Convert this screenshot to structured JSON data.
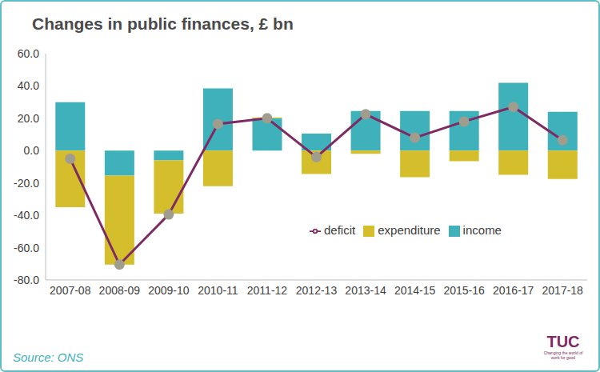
{
  "chart_data": {
    "type": "bar",
    "title": "Changes in public finances, £ bn",
    "categories": [
      "2007-08",
      "2008-09",
      "2009-10",
      "2010-11",
      "2011-12",
      "2012-13",
      "2013-14",
      "2014-15",
      "2015-16",
      "2016-17",
      "2017-18"
    ],
    "series": [
      {
        "name": "income",
        "type": "bar",
        "color": "#3fb1bb",
        "values": [
          30,
          -15.5,
          -6,
          38.5,
          20,
          10.5,
          24.5,
          24.5,
          24.5,
          42,
          24
        ]
      },
      {
        "name": "expenditure",
        "type": "bar",
        "color": "#d4be2c",
        "values": [
          -35,
          -55,
          -33,
          -22,
          0.5,
          -14.5,
          -2,
          -16.5,
          -6.5,
          -15,
          -17.5
        ]
      },
      {
        "name": "deficit",
        "type": "line",
        "color": "#7e2b63",
        "marker": "circle",
        "values": [
          -5,
          -70.5,
          -39.5,
          16.5,
          20,
          -4,
          22.5,
          8,
          18,
          27,
          6.5
        ]
      }
    ],
    "stacked": true,
    "ylim": [
      -80,
      60
    ],
    "yticks": [
      {
        "value": -80,
        "label": "-80.0"
      },
      {
        "value": -60,
        "label": "-60.0"
      },
      {
        "value": -40,
        "label": "-40.0"
      },
      {
        "value": -20,
        "label": "-20.0"
      },
      {
        "value": 0,
        "label": "0.0"
      },
      {
        "value": 20,
        "label": "20.0"
      },
      {
        "value": 40,
        "label": "40.0"
      },
      {
        "value": 60,
        "label": "60.0"
      }
    ],
    "grid": false,
    "legend": "center",
    "annotations": [
      "Source: ONS",
      "TUC",
      "Changing the world of work for good"
    ]
  }
}
